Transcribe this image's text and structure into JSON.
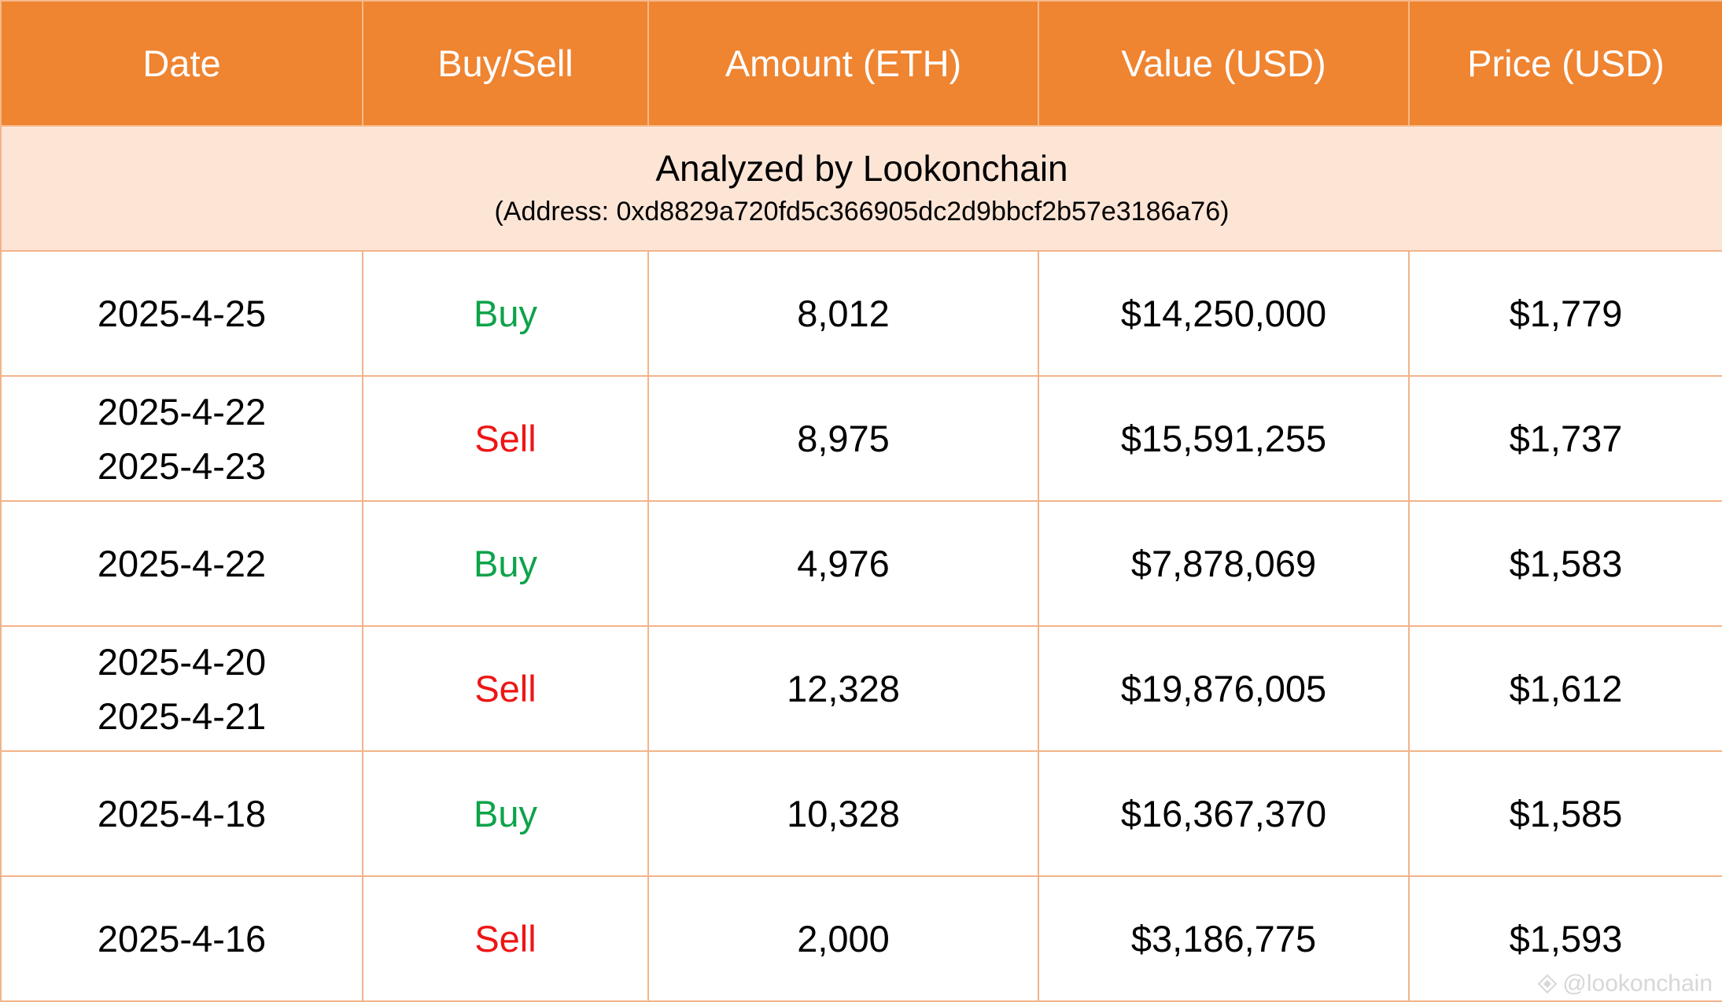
{
  "chart_data": {
    "type": "table",
    "columns": [
      "Date",
      "Buy/Sell",
      "Amount (ETH)",
      "Value (USD)",
      "Price (USD)"
    ],
    "subtitle": "Analyzed by Lookonchain",
    "address": "(Address: 0xd8829a720fd5c366905dc2d9bbcf2b57e3186a76)",
    "rows": [
      {
        "dates": [
          "2025-4-25"
        ],
        "side": "Buy",
        "amount": "8,012",
        "value": "$14,250,000",
        "price": "$1,779"
      },
      {
        "dates": [
          "2025-4-22",
          "2025-4-23"
        ],
        "side": "Sell",
        "amount": "8,975",
        "value": "$15,591,255",
        "price": "$1,737"
      },
      {
        "dates": [
          "2025-4-22"
        ],
        "side": "Buy",
        "amount": "4,976",
        "value": "$7,878,069",
        "price": "$1,583"
      },
      {
        "dates": [
          "2025-4-20",
          "2025-4-21"
        ],
        "side": "Sell",
        "amount": "12,328",
        "value": "$19,876,005",
        "price": "$1,612"
      },
      {
        "dates": [
          "2025-4-18"
        ],
        "side": "Buy",
        "amount": "10,328",
        "value": "$16,367,370",
        "price": "$1,585"
      },
      {
        "dates": [
          "2025-4-16"
        ],
        "side": "Sell",
        "amount": "2,000",
        "value": "$3,186,775",
        "price": "$1,593"
      }
    ]
  },
  "colors": {
    "header_bg": "#ef8431",
    "subheader_bg": "#fde5d6",
    "border": "#f3b38a",
    "buy": "#0da34a",
    "sell": "#ee1515"
  },
  "watermark": {
    "text": "@lookonchain",
    "icon": "lookonchain-logo-icon"
  }
}
